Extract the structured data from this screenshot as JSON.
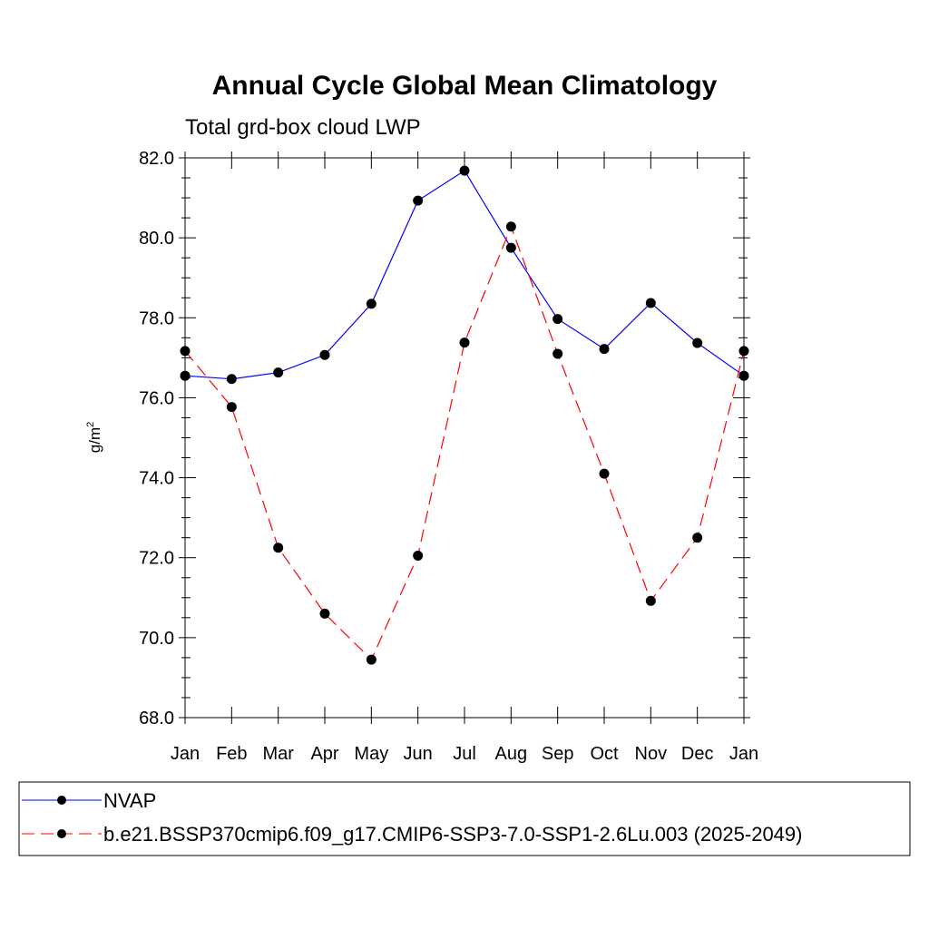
{
  "chart_data": {
    "type": "line",
    "title": "Annual Cycle Global Mean Climatology",
    "subtitle": "Total grd-box cloud LWP",
    "ylabel_base": "g/m",
    "ylabel_sup": "2",
    "categories": [
      "Jan",
      "Feb",
      "Mar",
      "Apr",
      "May",
      "Jun",
      "Jul",
      "Aug",
      "Sep",
      "Oct",
      "Nov",
      "Dec",
      "Jan"
    ],
    "ylim": [
      68.0,
      82.0
    ],
    "yticks": [
      "68.0",
      "70.0",
      "72.0",
      "74.0",
      "76.0",
      "78.0",
      "80.0",
      "82.0"
    ],
    "grid": false,
    "legend_position": "bottom",
    "series": [
      {
        "name": "NVAP",
        "color": "#0000ff",
        "dash": "solid",
        "values": [
          76.55,
          76.47,
          76.63,
          77.07,
          78.35,
          80.93,
          81.68,
          79.75,
          77.97,
          77.22,
          78.37,
          77.37,
          76.55
        ]
      },
      {
        "name": "b.e21.BSSP370cmip6.f09_g17.CMIP6-SSP3-7.0-SSP1-2.6Lu.003 (2025-2049)",
        "color": "#ff0000",
        "dash": "dashed",
        "values": [
          77.17,
          75.77,
          72.25,
          70.6,
          69.45,
          72.05,
          77.38,
          80.28,
          77.1,
          74.1,
          70.92,
          72.5,
          77.17
        ]
      }
    ]
  }
}
